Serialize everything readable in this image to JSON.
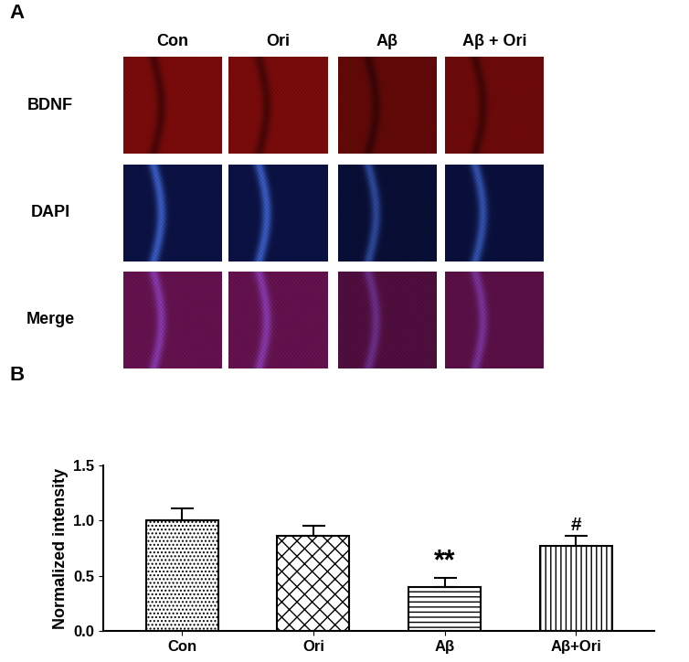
{
  "image_panel": {
    "panel_label": "A",
    "columns": [
      "Con",
      "Ori",
      "Aβ",
      "Aβ + Ori"
    ],
    "rows": [
      "BDNF",
      "DAPI",
      "Merge"
    ]
  },
  "panel_label": "B",
  "chart_data": {
    "type": "bar",
    "categories": [
      "Con",
      "Ori",
      "Aβ",
      "Aβ+Ori"
    ],
    "values": [
      1.0,
      0.86,
      0.4,
      0.77
    ],
    "errors": [
      0.11,
      0.09,
      0.08,
      0.09
    ],
    "y_label": "Normalized intensity",
    "ylim": [
      0,
      1.5
    ],
    "yticks": [
      {
        "value": 0,
        "label": "0.0"
      },
      0.5,
      {
        "value": 1,
        "label": "1.0"
      },
      1.5
    ],
    "annotations": [
      {
        "category": "Aβ",
        "text": "**"
      },
      {
        "category": "Aβ+Ori",
        "text": "#"
      }
    ],
    "grid": false
  }
}
